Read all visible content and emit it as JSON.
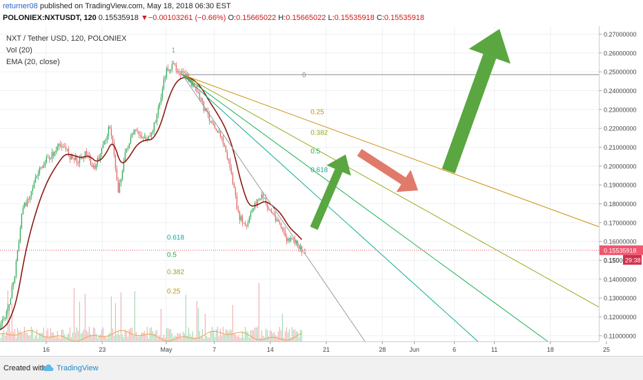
{
  "header": {
    "author": "returner08",
    "published_text": " published on TradingView.com, May 18, 2018 06:30 EST",
    "symbol": "POLONIEX:NXTUSDT, 120",
    "last": "0.15535918",
    "down_mark": "▼",
    "change": "−0.00103261 (−0.66%)",
    "o_label": "O:",
    "o_val": "0.15665022",
    "h_label": "H:",
    "h_val": "0.15665022",
    "l_label": "L:",
    "l_val": "0.15535918",
    "c_label": "C:",
    "c_val": "0.15535918"
  },
  "legend": {
    "title": "NXT / Tether USD, 120, POLONIEX",
    "vol": "Vol (20)",
    "ema": "EMA (20, close)"
  },
  "footer": {
    "created": "Created with",
    "brand": "TradingView"
  },
  "colors": {
    "up": "#3aaa5c",
    "down": "#e26a6a",
    "ema": "#8b1a10",
    "fan_gold": "#c8900a",
    "fan_olive": "#96a818",
    "fan_green": "#18b050",
    "fan_teal": "#10a896",
    "arrow_green": "#5aa640",
    "arrow_red": "#e07a6a",
    "last_price_bg": "#f0566e",
    "countdown_bg": "#d0304a"
  },
  "chart_data": {
    "type": "candlestick",
    "title": "NXT / Tether USD, 120, POLONIEX",
    "indicators": [
      "Vol (20)",
      "EMA (20, close)"
    ],
    "x_ticks": [
      "16",
      "23",
      "May",
      "7",
      "14",
      "21",
      "28",
      "Jun",
      "6",
      "11",
      "18",
      "25"
    ],
    "y_ticks": [
      "0.27000000",
      "0.26000000",
      "0.25000000",
      "0.24000000",
      "0.23000000",
      "0.22000000",
      "0.21000000",
      "0.20000000",
      "0.19000000",
      "0.18000000",
      "0.17000000",
      "0.16000000",
      "0.15000000",
      "0.14000000",
      "0.13000000",
      "0.12000000",
      "0.11000000"
    ],
    "ylim": [
      0.107,
      0.272
    ],
    "last_price": "0.15535918",
    "partial_tick": "0.150",
    "countdown": "29:38",
    "price_path": [
      {
        "date": "2018-04-10",
        "close": 0.113
      },
      {
        "date": "2018-04-11",
        "close": 0.121
      },
      {
        "date": "2018-04-12",
        "close": 0.14
      },
      {
        "date": "2018-04-13",
        "close": 0.176
      },
      {
        "date": "2018-04-14",
        "close": 0.186
      },
      {
        "date": "2018-04-15",
        "close": 0.196
      },
      {
        "date": "2018-04-16",
        "close": 0.203
      },
      {
        "date": "2018-04-17",
        "close": 0.207
      },
      {
        "date": "2018-04-18",
        "close": 0.212
      },
      {
        "date": "2018-04-19",
        "close": 0.205
      },
      {
        "date": "2018-04-20",
        "close": 0.203
      },
      {
        "date": "2018-04-21",
        "close": 0.207
      },
      {
        "date": "2018-04-22",
        "close": 0.198
      },
      {
        "date": "2018-04-23",
        "close": 0.209
      },
      {
        "date": "2018-04-24",
        "close": 0.222
      },
      {
        "date": "2018-04-25",
        "close": 0.187
      },
      {
        "date": "2018-04-26",
        "close": 0.209
      },
      {
        "date": "2018-04-27",
        "close": 0.218
      },
      {
        "date": "2018-04-28",
        "close": 0.216
      },
      {
        "date": "2018-04-29",
        "close": 0.214
      },
      {
        "date": "2018-04-30",
        "close": 0.23
      },
      {
        "date": "2018-05-01",
        "close": 0.251
      },
      {
        "date": "2018-05-02",
        "close": 0.253
      },
      {
        "date": "2018-05-03",
        "close": 0.249
      },
      {
        "date": "2018-05-04",
        "close": 0.245
      },
      {
        "date": "2018-05-05",
        "close": 0.238
      },
      {
        "date": "2018-05-06",
        "close": 0.228
      },
      {
        "date": "2018-05-07",
        "close": 0.222
      },
      {
        "date": "2018-05-08",
        "close": 0.214
      },
      {
        "date": "2018-05-09",
        "close": 0.199
      },
      {
        "date": "2018-05-10",
        "close": 0.174
      },
      {
        "date": "2018-05-11",
        "close": 0.167
      },
      {
        "date": "2018-05-12",
        "close": 0.18
      },
      {
        "date": "2018-05-13",
        "close": 0.184
      },
      {
        "date": "2018-05-14",
        "close": 0.176
      },
      {
        "date": "2018-05-15",
        "close": 0.171
      },
      {
        "date": "2018-05-16",
        "close": 0.161
      },
      {
        "date": "2018-05-17",
        "close": 0.16
      },
      {
        "date": "2018-05-18",
        "close": 0.155
      }
    ],
    "fib_fan": {
      "origin": {
        "date": "2018-05-03",
        "price": 0.2485
      },
      "end": {
        "date": "2018-05-18",
        "price": 0.1555
      },
      "levels": [
        "0",
        "0.25",
        "0.382",
        "0.5",
        "0.618",
        "1"
      ]
    },
    "fib_fan_low": {
      "origin": {
        "date": "2018-04-10",
        "price": 0.113
      },
      "end": {
        "date": "2018-05-02",
        "price": 0.262
      },
      "levels": [
        "0.25",
        "0.382",
        "0.5",
        "0.618",
        "1"
      ]
    }
  }
}
